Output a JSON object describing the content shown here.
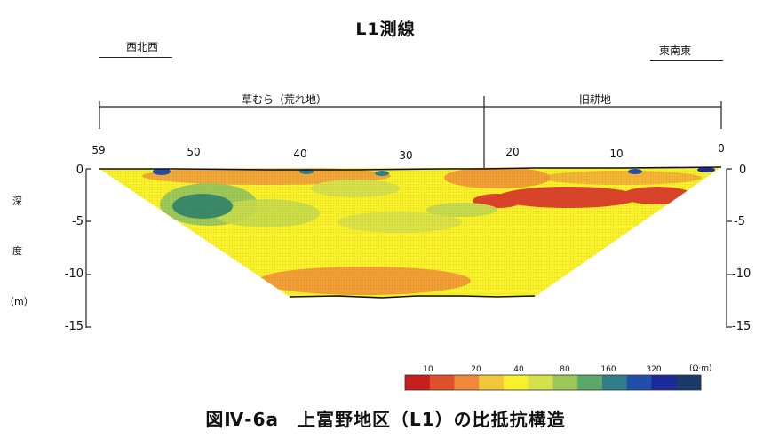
{
  "title": "L1測線",
  "direction_left": "西北西",
  "direction_right": "東南東",
  "segments": [
    {
      "label": "草むら（荒れ地）"
    },
    {
      "label": "旧耕地"
    }
  ],
  "x_ticks": [
    "59",
    "50",
    "40",
    "30",
    "20",
    "10",
    "0"
  ],
  "y_ticks_left": [
    "0",
    "-5",
    "-10",
    "-15"
  ],
  "y_ticks_right": [
    "0",
    "-5",
    "-10",
    "-15"
  ],
  "y_label": [
    "深",
    "度",
    "（m）"
  ],
  "legend": {
    "ticks": [
      "10",
      "20",
      "40",
      "80",
      "160",
      "320"
    ],
    "unit": "(Ω·m)",
    "colors": [
      "#c81e1e",
      "#e0502a",
      "#ef8a3a",
      "#f4c63a",
      "#f7f02a",
      "#d6e04a",
      "#9cc85a",
      "#5aa86a",
      "#2f7f8a",
      "#1f4fa8",
      "#1a2a9a",
      "#1a3a6a"
    ]
  },
  "caption": "図Ⅳ-6a　上富野地区（L1）の比抵抗構造"
}
